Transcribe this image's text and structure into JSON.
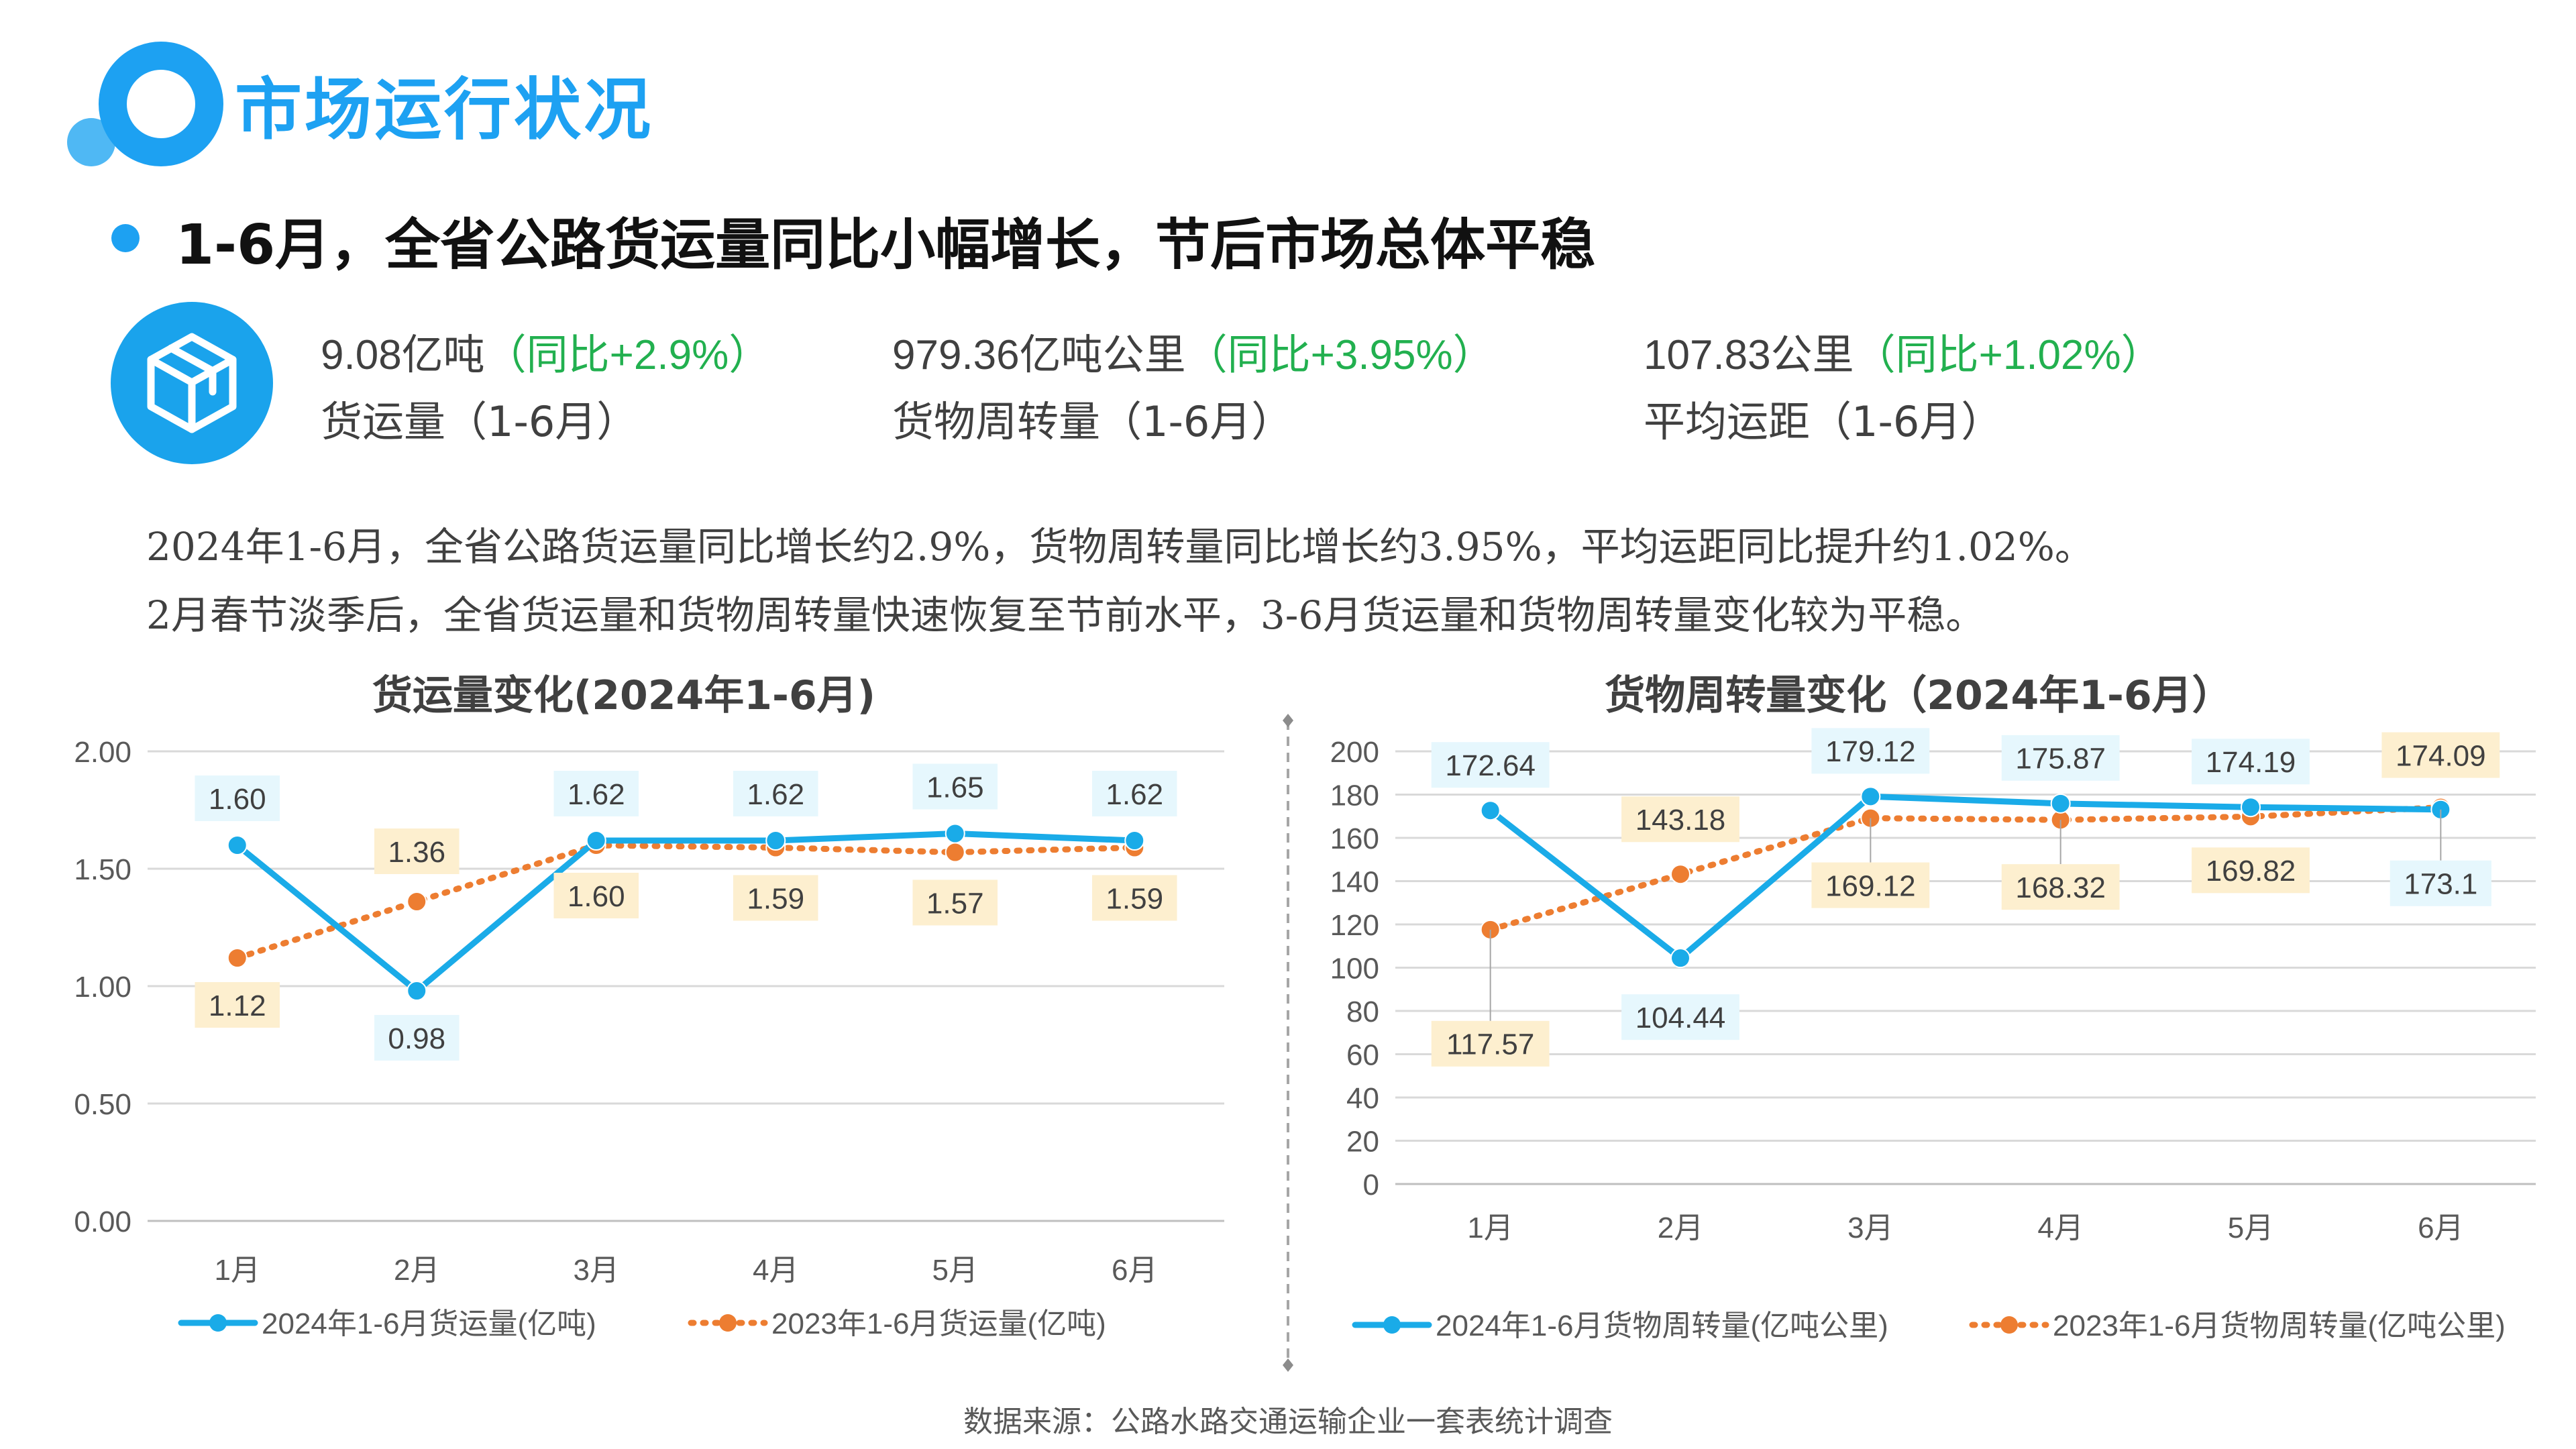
{
  "header": {
    "title": "市场运行状况"
  },
  "headline": "1-6月，全省公路货运量同比小幅增长，节后市场总体平稳",
  "icon": "package-box-icon",
  "stats": [
    {
      "value": "9.08亿吨",
      "change": "（同比+2.9%）",
      "label": "货运量（1-6月）"
    },
    {
      "value": "979.36亿吨公里",
      "change": "（同比+3.95%）",
      "label": "货物周转量（1-6月）"
    },
    {
      "value": "107.83公里",
      "change": "（同比+1.02%）",
      "label": "平均运距（1-6月）"
    }
  ],
  "description": [
    "2024年1-6月，全省公路货运量同比增长约2.9%，货物周转量同比增长约3.95%，平均运距同比提升约1.02%。",
    "2月春节淡季后，全省货运量和货物周转量快速恢复至节前水平，3-6月货运量和货物周转量变化较为平稳。"
  ],
  "source": "数据来源：公路水路交通运输企业一套表统计调查",
  "colors": {
    "accent": "#1da1f2",
    "series_2024": "#1aabe8",
    "series_2023": "#ed7d31",
    "label_2024_bg": "#e6f7fd",
    "label_2023_bg": "#fdefcf",
    "positive": "#22b04f"
  },
  "chart_data": [
    {
      "type": "line",
      "title": "货运量变化(2024年1-6月)",
      "categories": [
        "1月",
        "2月",
        "3月",
        "4月",
        "5月",
        "6月"
      ],
      "ylim": [
        0,
        2
      ],
      "yticks": [
        "0.00",
        "0.50",
        "1.00",
        "1.50",
        "2.00"
      ],
      "grid": true,
      "legend": "bottom",
      "series": [
        {
          "name": "2024年1-6月货运量(亿吨)",
          "values": [
            1.6,
            0.98,
            1.62,
            1.62,
            1.65,
            1.62
          ],
          "labels": [
            "1.60",
            "0.98",
            "1.62",
            "1.62",
            "1.65",
            "1.62"
          ],
          "style": "solid"
        },
        {
          "name": "2023年1-6月货运量(亿吨)",
          "values": [
            1.12,
            1.36,
            1.6,
            1.59,
            1.57,
            1.59
          ],
          "labels": [
            "1.12",
            "1.36",
            "1.60",
            "1.59",
            "1.57",
            "1.59"
          ],
          "style": "dotted"
        }
      ]
    },
    {
      "type": "line",
      "title": "货物周转量变化（2024年1-6月）",
      "categories": [
        "1月",
        "2月",
        "3月",
        "4月",
        "5月",
        "6月"
      ],
      "ylim": [
        0,
        200
      ],
      "yticks": [
        "0",
        "20",
        "40",
        "60",
        "80",
        "100",
        "120",
        "140",
        "160",
        "180",
        "200"
      ],
      "grid": true,
      "legend": "bottom",
      "series": [
        {
          "name": "2024年1-6月货物周转量(亿吨公里)",
          "values": [
            172.64,
            104.44,
            179.12,
            175.87,
            174.19,
            173.1
          ],
          "labels": [
            "172.64",
            "104.44",
            "179.12",
            "175.87",
            "174.19",
            "173.1"
          ],
          "style": "solid"
        },
        {
          "name": "2023年1-6月货物周转量(亿吨公里)",
          "values": [
            117.57,
            143.18,
            169.12,
            168.32,
            169.82,
            174.09
          ],
          "labels": [
            "117.57",
            "143.18",
            "169.12",
            "168.32",
            "169.82",
            "174.09"
          ],
          "style": "dotted"
        }
      ]
    }
  ]
}
